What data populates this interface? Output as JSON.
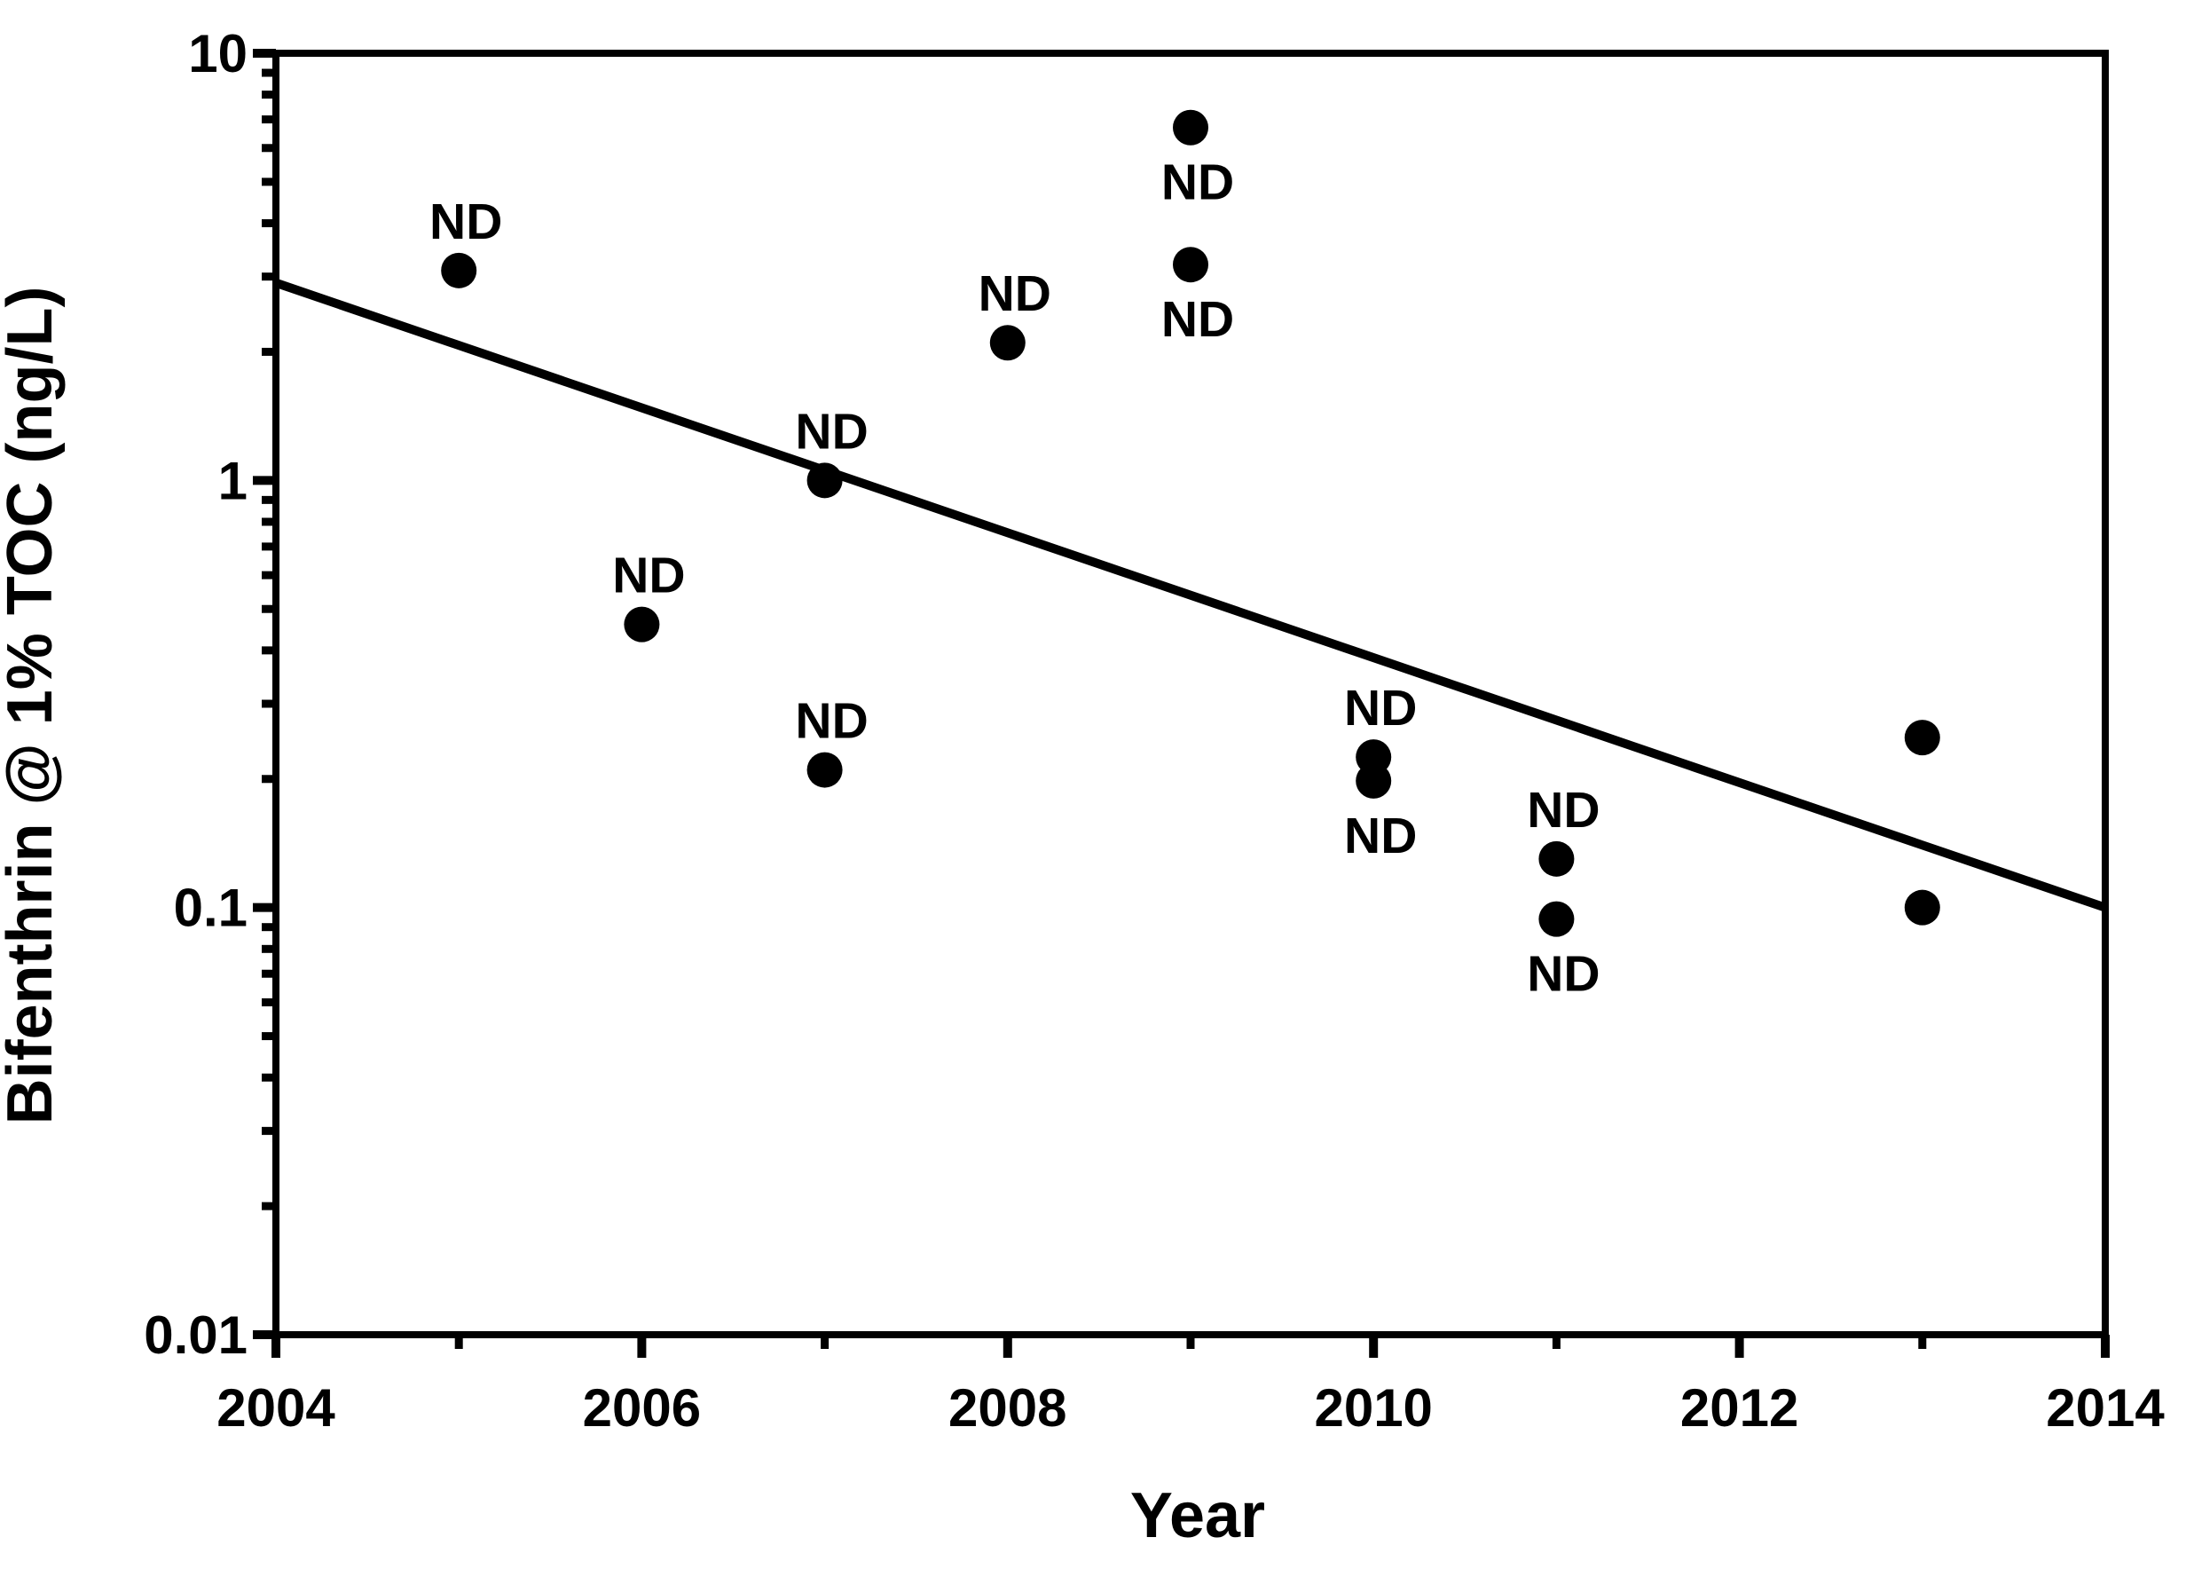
{
  "figure": {
    "background": "#ffffff",
    "foreground": "#000000"
  },
  "chart_data": {
    "type": "scatter",
    "title": "",
    "xlabel": "Year",
    "ylabel": "Bifenthrin @ 1% TOC (ng/L)",
    "x_axis": {
      "min": 2004,
      "max": 2014,
      "major_ticks": [
        2004,
        2006,
        2008,
        2010,
        2012,
        2014
      ],
      "major_tick_labels": [
        "2004",
        "2006",
        "2008",
        "2010",
        "2012",
        "2014"
      ],
      "minor_ticks": [
        2005,
        2007,
        2009,
        2011,
        2013
      ]
    },
    "y_axis": {
      "scale": "log",
      "min": 0.01,
      "max": 10,
      "major_ticks": [
        10,
        1,
        0.1,
        0.01
      ],
      "major_tick_labels": [
        "10",
        "1",
        "0.1",
        "0.01"
      ],
      "minor_tick_steps": [
        2,
        3,
        4,
        5,
        6,
        7,
        8,
        9
      ]
    },
    "grid": false,
    "legend": false,
    "marker_color": "#000000",
    "line_color": "#000000",
    "points": [
      {
        "year": 2005,
        "value": 3.1,
        "annotation": "ND",
        "annotation_position": "above"
      },
      {
        "year": 2006,
        "value": 0.46,
        "annotation": "ND",
        "annotation_position": "above"
      },
      {
        "year": 2007,
        "value": 1.0,
        "annotation": "ND",
        "annotation_position": "above"
      },
      {
        "year": 2007,
        "value": 0.21,
        "annotation": "ND",
        "annotation_position": "above"
      },
      {
        "year": 2008,
        "value": 2.1,
        "annotation": "ND",
        "annotation_position": "above"
      },
      {
        "year": 2009,
        "value": 6.7,
        "annotation": "ND",
        "annotation_position": "below"
      },
      {
        "year": 2009,
        "value": 3.2,
        "annotation": "ND",
        "annotation_position": "below"
      },
      {
        "year": 2010,
        "value": 0.225,
        "annotation": "ND",
        "annotation_position": "above"
      },
      {
        "year": 2010,
        "value": 0.198,
        "annotation": "ND",
        "annotation_position": "below"
      },
      {
        "year": 2011,
        "value": 0.13,
        "annotation": "ND",
        "annotation_position": "above"
      },
      {
        "year": 2011,
        "value": 0.094,
        "annotation": "ND",
        "annotation_position": "below"
      },
      {
        "year": 2013,
        "value": 0.25,
        "annotation": "",
        "annotation_position": null
      },
      {
        "year": 2013,
        "value": 0.1,
        "annotation": "",
        "annotation_position": null
      }
    ],
    "trend_line": {
      "start": {
        "year": 2004,
        "value": 2.9
      },
      "end": {
        "year": 2014,
        "value": 0.1
      }
    }
  }
}
